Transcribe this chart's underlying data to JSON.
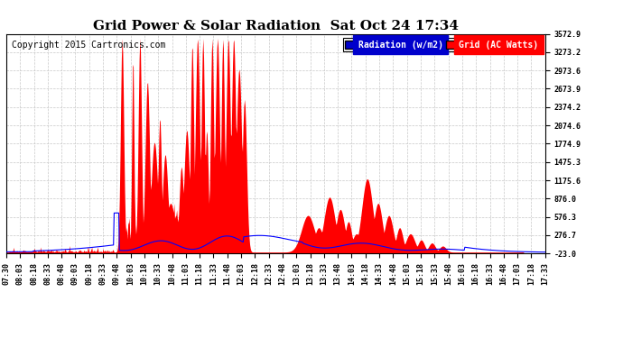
{
  "title": "Grid Power & Solar Radiation  Sat Oct 24 17:34",
  "copyright": "Copyright 2015 Cartronics.com",
  "legend_radiation": "Radiation (w/m2)",
  "legend_grid": "Grid (AC Watts)",
  "radiation_color": "#0000FF",
  "grid_color": "#FF0000",
  "background_color": "#FFFFFF",
  "grid_line_color": "#C8C8C8",
  "y_ticks": [
    -23.0,
    276.7,
    576.3,
    876.0,
    1175.6,
    1475.3,
    1774.9,
    2074.6,
    2374.2,
    2673.9,
    2973.6,
    3273.2,
    3572.9
  ],
  "x_tick_labels": [
    "07:30",
    "08:03",
    "08:18",
    "08:33",
    "08:48",
    "09:03",
    "09:18",
    "09:33",
    "09:48",
    "10:03",
    "10:18",
    "10:33",
    "10:48",
    "11:03",
    "11:18",
    "11:33",
    "11:48",
    "12:03",
    "12:18",
    "12:33",
    "12:48",
    "13:03",
    "13:18",
    "13:33",
    "13:48",
    "14:03",
    "14:18",
    "14:33",
    "14:48",
    "15:03",
    "15:18",
    "15:33",
    "15:48",
    "16:03",
    "16:18",
    "16:33",
    "16:48",
    "17:03",
    "17:18",
    "17:33"
  ],
  "ymin": -23.0,
  "ymax": 3572.9,
  "title_fontsize": 11,
  "axis_fontsize": 6,
  "copyright_fontsize": 7,
  "legend_fontsize": 7
}
